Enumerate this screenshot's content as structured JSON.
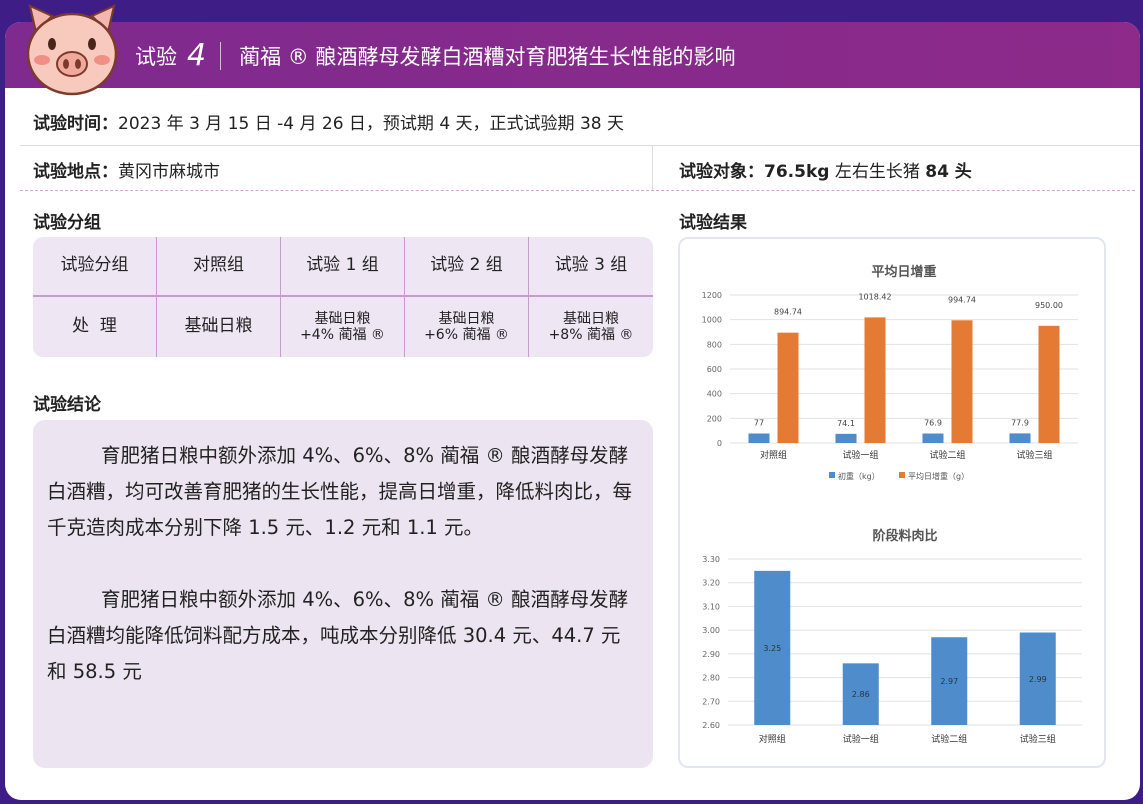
{
  "header": {
    "label": "试验",
    "number": "4",
    "title": "蔺福 ® 酿酒酵母发酵白酒糟对育肥猪生长性能的影响"
  },
  "info": {
    "time_label": "试验时间：",
    "time_value": "2023 年 3 月 15 日 -4 月 26 日，预试期 4 天，正式试验期 38 天",
    "place_label": "试验地点：",
    "place_value": "黄冈市麻城市",
    "subject_label": "试验对象：",
    "subject_weight": "76.5kg",
    "subject_mid": " 左右生长猪 ",
    "subject_count": "84 头"
  },
  "grouping": {
    "title": "试验分组",
    "header": [
      "试验分组",
      "对照组",
      "试验 1 组",
      "试验 2 组",
      "试验 3 组"
    ],
    "row": [
      "处  理",
      "基础日粮",
      "基础日粮\n+4% 蔺福 ®",
      "基础日粮\n+6% 蔺福 ®",
      "基础日粮\n+8% 蔺福 ®"
    ]
  },
  "conclusion": {
    "title": "试验结论",
    "paragraphs": [
      "育肥猪日粮中额外添加 4%、6%、8% 蔺福 ® 酿酒酵母发酵白酒糟，均可改善育肥猪的生长性能，提高日增重，降低料肉比，每千克造肉成本分别下降 1.5 元、1.2 元和 1.1 元。",
      "育肥猪日粮中额外添加 4%、6%、8% 蔺福 ® 酿酒酵母发酵白酒糟均能降低饲料配方成本，吨成本分别降低 30.4 元、44.7 元和 58.5 元"
    ]
  },
  "results": {
    "title": "试验结果"
  },
  "chart_data": [
    {
      "type": "bar",
      "title": "平均日增重",
      "categories": [
        "对照组",
        "试验一组",
        "试验二组",
        "试验三组"
      ],
      "series": [
        {
          "name": "初重（kg）",
          "values": [
            77,
            74.1,
            76.9,
            77.9
          ],
          "labels": [
            "77",
            "74.1",
            "76.9",
            "77.9"
          ],
          "color": "#4e8ccb"
        },
        {
          "name": "平均日增重（g）",
          "values": [
            894.74,
            1018.42,
            994.74,
            950.0
          ],
          "labels": [
            "894.74",
            "1018.42",
            "994.74",
            "950.00"
          ],
          "color": "#e57a35"
        }
      ],
      "ylim": [
        0,
        1200
      ],
      "yticks": [
        "0",
        "200",
        "400",
        "600",
        "800",
        "1000",
        "1200"
      ],
      "grid": true,
      "legend": "bottom"
    },
    {
      "type": "bar",
      "title": "阶段料肉比",
      "categories": [
        "对照组",
        "试验一组",
        "试验二组",
        "试验三组"
      ],
      "series": [
        {
          "values": [
            3.25,
            2.86,
            2.97,
            2.99
          ],
          "labels": [
            "3.25",
            "2.86",
            "2.97",
            "2.99"
          ],
          "color": "#4e8ccb"
        }
      ],
      "ylim": [
        2.6,
        3.3
      ],
      "yticks": [
        "2.60",
        "2.70",
        "2.80",
        "2.90",
        "3.00",
        "3.10",
        "3.20",
        "3.30"
      ],
      "grid": true
    }
  ],
  "colors": {
    "band": "#8a2a8c",
    "background": "#3f1d86",
    "panel": "#ece5f1"
  }
}
